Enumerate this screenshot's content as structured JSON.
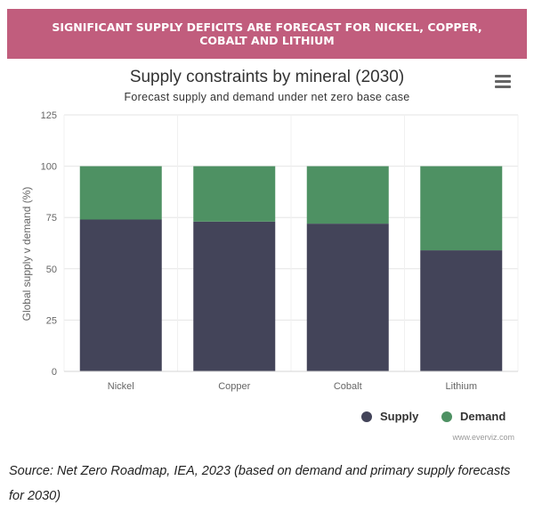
{
  "banner": {
    "text": "SIGNIFICANT SUPPLY DEFICITS ARE FORECAST FOR NICKEL, COPPER, COBALT AND LITHIUM"
  },
  "chart_data": {
    "type": "bar",
    "stacked": true,
    "title": "Supply constraints by mineral (2030)",
    "subtitle": "Forecast supply and demand under net zero base case",
    "xlabel": "",
    "ylabel": "Global supply v demand (%)",
    "ylim": [
      0,
      125
    ],
    "yticks": [
      0,
      25,
      50,
      75,
      100,
      125
    ],
    "categories": [
      "Nickel",
      "Copper",
      "Cobalt",
      "Lithium"
    ],
    "series": [
      {
        "name": "Supply",
        "color": "#434459",
        "values": [
          74,
          73,
          72,
          59
        ]
      },
      {
        "name": "Demand",
        "color": "#4e9163",
        "values": [
          26,
          27,
          28,
          41
        ]
      }
    ],
    "grid": true,
    "legend_position": "bottom-right"
  },
  "credit": "www.everviz.com",
  "source": "Source: Net Zero Roadmap, IEA, 2023 (based on demand and primary supply forecasts for 2030)",
  "icons": {
    "menu": "hamburger-menu-icon"
  }
}
